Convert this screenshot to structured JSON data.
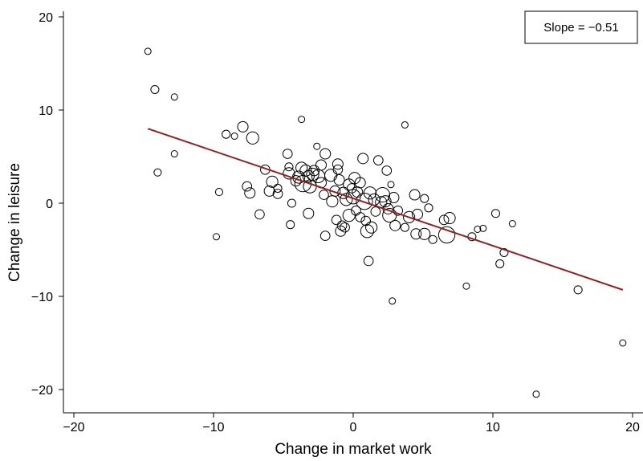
{
  "chart_data": {
    "type": "scatter",
    "xlabel": "Change in market work",
    "ylabel": "Change in leisure",
    "xlim": [
      -21,
      21
    ],
    "ylim": [
      -21.5,
      21
    ],
    "x_ticks": [
      -20,
      -10,
      0,
      10,
      20
    ],
    "y_ticks": [
      -20,
      -10,
      0,
      10,
      20
    ],
    "x_tick_labels": [
      "−20",
      "−10",
      "0",
      "10",
      "20"
    ],
    "y_tick_labels": [
      "−20",
      "−10",
      "0",
      "10",
      "20"
    ],
    "grid": false,
    "legend_position": "top-right",
    "annotation": "Slope = −0.51",
    "fit_line": {
      "x": [
        -14.7,
        19.3
      ],
      "y": [
        8.0,
        -9.3
      ],
      "slope": -0.51,
      "color": "#8b2323"
    },
    "points": [
      {
        "x": -14.7,
        "y": 16.3,
        "w": 1
      },
      {
        "x": -14.2,
        "y": 12.2,
        "w": 2
      },
      {
        "x": -12.8,
        "y": 11.4,
        "w": 1
      },
      {
        "x": -14.0,
        "y": 3.3,
        "w": 1.5
      },
      {
        "x": -12.8,
        "y": 5.3,
        "w": 1
      },
      {
        "x": -9.8,
        "y": -3.6,
        "w": 1
      },
      {
        "x": -9.6,
        "y": 1.2,
        "w": 1.5
      },
      {
        "x": -9.1,
        "y": 7.4,
        "w": 2
      },
      {
        "x": -8.5,
        "y": 7.2,
        "w": 1
      },
      {
        "x": -7.9,
        "y": 8.2,
        "w": 4
      },
      {
        "x": -7.6,
        "y": 1.8,
        "w": 3
      },
      {
        "x": -7.4,
        "y": 1.1,
        "w": 4
      },
      {
        "x": -7.2,
        "y": 7.0,
        "w": 6
      },
      {
        "x": -6.7,
        "y": -1.2,
        "w": 3
      },
      {
        "x": -6.3,
        "y": 3.6,
        "w": 3
      },
      {
        "x": -6.0,
        "y": 1.3,
        "w": 4
      },
      {
        "x": -5.8,
        "y": 2.3,
        "w": 5
      },
      {
        "x": -5.4,
        "y": 1.6,
        "w": 2
      },
      {
        "x": -5.4,
        "y": 1.0,
        "w": 3
      },
      {
        "x": -4.7,
        "y": 5.3,
        "w": 3
      },
      {
        "x": -4.6,
        "y": 3.9,
        "w": 2
      },
      {
        "x": -4.6,
        "y": 3.2,
        "w": 5
      },
      {
        "x": -4.5,
        "y": -2.3,
        "w": 2
      },
      {
        "x": -4.4,
        "y": 0.0,
        "w": 2
      },
      {
        "x": -4.1,
        "y": 2.4,
        "w": 4
      },
      {
        "x": -3.9,
        "y": 2.8,
        "w": 6
      },
      {
        "x": -3.7,
        "y": 3.8,
        "w": 5
      },
      {
        "x": -3.7,
        "y": 9.0,
        "w": 1
      },
      {
        "x": -3.6,
        "y": 2.1,
        "w": 12
      },
      {
        "x": -3.4,
        "y": 3.5,
        "w": 5
      },
      {
        "x": -3.2,
        "y": 2.9,
        "w": 5
      },
      {
        "x": -3.2,
        "y": -1.1,
        "w": 4
      },
      {
        "x": -3.1,
        "y": 1.8,
        "w": 7
      },
      {
        "x": -2.9,
        "y": 3.1,
        "w": 6
      },
      {
        "x": -2.8,
        "y": 3.5,
        "w": 4
      },
      {
        "x": -2.6,
        "y": 6.1,
        "w": 1
      },
      {
        "x": -2.5,
        "y": 2.9,
        "w": 7
      },
      {
        "x": -2.3,
        "y": 2.2,
        "w": 4
      },
      {
        "x": -2.3,
        "y": 4.1,
        "w": 4
      },
      {
        "x": -2.1,
        "y": 0.9,
        "w": 3
      },
      {
        "x": -2.0,
        "y": 5.3,
        "w": 4
      },
      {
        "x": -2.0,
        "y": -3.5,
        "w": 3
      },
      {
        "x": -1.6,
        "y": 3.0,
        "w": 6
      },
      {
        "x": -1.5,
        "y": 0.2,
        "w": 5
      },
      {
        "x": -1.3,
        "y": 1.3,
        "w": 4
      },
      {
        "x": -1.2,
        "y": -1.8,
        "w": 3
      },
      {
        "x": -1.1,
        "y": 4.2,
        "w": 4
      },
      {
        "x": -1.1,
        "y": 3.6,
        "w": 3
      },
      {
        "x": -1.0,
        "y": 2.5,
        "w": 4
      },
      {
        "x": -0.9,
        "y": -3.0,
        "w": 4
      },
      {
        "x": -0.8,
        "y": -2.4,
        "w": 3
      },
      {
        "x": -0.7,
        "y": 1.1,
        "w": 5
      },
      {
        "x": -0.6,
        "y": -2.6,
        "w": 3
      },
      {
        "x": -0.5,
        "y": 0.4,
        "w": 6
      },
      {
        "x": -0.3,
        "y": 2.0,
        "w": 5
      },
      {
        "x": -0.3,
        "y": -1.3,
        "w": 6
      },
      {
        "x": -0.1,
        "y": 1.6,
        "w": 3
      },
      {
        "x": 0.0,
        "y": 0.7,
        "w": 9
      },
      {
        "x": 0.1,
        "y": 2.7,
        "w": 5
      },
      {
        "x": 0.2,
        "y": -0.8,
        "w": 3
      },
      {
        "x": 0.3,
        "y": 1.2,
        "w": 4
      },
      {
        "x": 0.5,
        "y": 2.2,
        "w": 4
      },
      {
        "x": 0.5,
        "y": -1.5,
        "w": 3
      },
      {
        "x": 0.7,
        "y": 4.8,
        "w": 4
      },
      {
        "x": 0.8,
        "y": 0.2,
        "w": 12
      },
      {
        "x": 0.9,
        "y": -1.9,
        "w": 3
      },
      {
        "x": 1.0,
        "y": -3.0,
        "w": 7
      },
      {
        "x": 1.1,
        "y": -6.2,
        "w": 3
      },
      {
        "x": 1.2,
        "y": 1.1,
        "w": 6
      },
      {
        "x": 1.3,
        "y": -2.6,
        "w": 5
      },
      {
        "x": 1.5,
        "y": 0.4,
        "w": 5
      },
      {
        "x": 1.6,
        "y": -0.9,
        "w": 3
      },
      {
        "x": 1.8,
        "y": 4.6,
        "w": 3
      },
      {
        "x": 2.0,
        "y": 0.1,
        "w": 5
      },
      {
        "x": 2.1,
        "y": 0.9,
        "w": 9
      },
      {
        "x": 2.3,
        "y": 0.2,
        "w": 5
      },
      {
        "x": 2.4,
        "y": 3.5,
        "w": 3
      },
      {
        "x": 2.5,
        "y": -0.6,
        "w": 4
      },
      {
        "x": 2.6,
        "y": -1.3,
        "w": 8
      },
      {
        "x": 2.7,
        "y": 2.0,
        "w": 1
      },
      {
        "x": 2.8,
        "y": -10.5,
        "w": 1
      },
      {
        "x": 2.9,
        "y": 0.6,
        "w": 4
      },
      {
        "x": 3.0,
        "y": -2.4,
        "w": 4
      },
      {
        "x": 3.2,
        "y": -0.8,
        "w": 3
      },
      {
        "x": 3.7,
        "y": 8.4,
        "w": 1
      },
      {
        "x": 3.7,
        "y": -2.6,
        "w": 2
      },
      {
        "x": 4.0,
        "y": -1.5,
        "w": 5
      },
      {
        "x": 4.4,
        "y": 0.9,
        "w": 4
      },
      {
        "x": 4.5,
        "y": -3.3,
        "w": 4
      },
      {
        "x": 4.6,
        "y": -1.2,
        "w": 4
      },
      {
        "x": 5.1,
        "y": 0.5,
        "w": 2
      },
      {
        "x": 5.1,
        "y": -3.3,
        "w": 5
      },
      {
        "x": 5.4,
        "y": -0.5,
        "w": 2
      },
      {
        "x": 5.7,
        "y": -3.9,
        "w": 2
      },
      {
        "x": 6.5,
        "y": -1.8,
        "w": 3
      },
      {
        "x": 6.7,
        "y": -3.4,
        "w": 12
      },
      {
        "x": 6.9,
        "y": -1.6,
        "w": 5
      },
      {
        "x": 8.1,
        "y": -8.9,
        "w": 1
      },
      {
        "x": 8.5,
        "y": -3.6,
        "w": 2
      },
      {
        "x": 8.9,
        "y": -2.8,
        "w": 1
      },
      {
        "x": 9.3,
        "y": -2.7,
        "w": 1
      },
      {
        "x": 10.2,
        "y": -1.1,
        "w": 2
      },
      {
        "x": 10.5,
        "y": -6.5,
        "w": 2
      },
      {
        "x": 10.8,
        "y": -5.3,
        "w": 2
      },
      {
        "x": 11.4,
        "y": -2.2,
        "w": 1
      },
      {
        "x": 13.1,
        "y": -20.5,
        "w": 1
      },
      {
        "x": 16.1,
        "y": -9.3,
        "w": 2
      },
      {
        "x": 19.3,
        "y": -15.0,
        "w": 1
      }
    ]
  }
}
